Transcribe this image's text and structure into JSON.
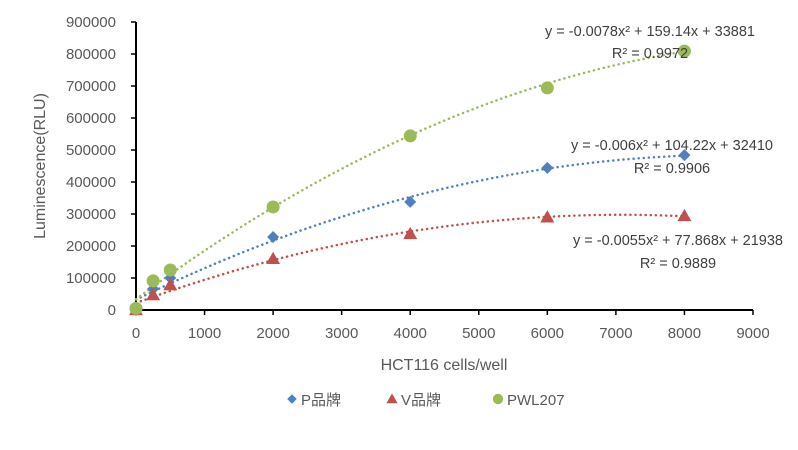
{
  "chart_data": {
    "type": "scatter",
    "title": "",
    "xlabel": "HCT116 cells/well",
    "ylabel": "Luminescence(RLU)",
    "xlim": [
      0,
      9000
    ],
    "ylim": [
      0,
      900000
    ],
    "xticks": [
      0,
      1000,
      2000,
      3000,
      4000,
      5000,
      6000,
      7000,
      8000,
      9000
    ],
    "yticks": [
      0,
      100000,
      200000,
      300000,
      400000,
      500000,
      600000,
      700000,
      800000,
      900000
    ],
    "xtick_labels": [
      "0",
      "1000",
      "2000",
      "3000",
      "4000",
      "5000",
      "6000",
      "7000",
      "8000",
      "9000"
    ],
    "ytick_labels": [
      "0",
      "100000",
      "200000",
      "300000",
      "400000",
      "500000",
      "600000",
      "700000",
      "800000",
      "900000"
    ],
    "grid": false,
    "legend_position": "bottom",
    "x": [
      0,
      250,
      500,
      2000,
      4000,
      6000,
      8000
    ],
    "series": [
      {
        "name": "P品牌",
        "marker": "diamond",
        "color": "#4F81BD",
        "values": [
          0,
          66000,
          100000,
          228000,
          338000,
          444000,
          484000
        ],
        "trendline": {
          "type": "polynomial-2",
          "coefficients": [
            -0.006,
            104.22,
            32410
          ],
          "equation": "y = -0.006x² + 104.22x + 32410",
          "r_squared": "R² = 0.9906"
        }
      },
      {
        "name": "V品牌",
        "marker": "triangle",
        "color": "#C0504D",
        "values": [
          0,
          47000,
          78000,
          160000,
          238000,
          290000,
          294000
        ],
        "trendline": {
          "type": "polynomial-2",
          "coefficients": [
            -0.0055,
            77.868,
            21938
          ],
          "equation": "y = -0.0055x² + 77.868x + 21938",
          "r_squared": "R² = 0.9889"
        }
      },
      {
        "name": "PWL207",
        "marker": "circle",
        "color": "#9BBB59",
        "values": [
          5000,
          91000,
          125000,
          322000,
          544000,
          694000,
          809000
        ],
        "trendline": {
          "type": "polynomial-2",
          "coefficients": [
            -0.0078,
            159.14,
            33881
          ],
          "equation": "y = -0.0078x² + 159.14x + 33881",
          "r_squared": "R² = 0.9972"
        }
      }
    ]
  }
}
